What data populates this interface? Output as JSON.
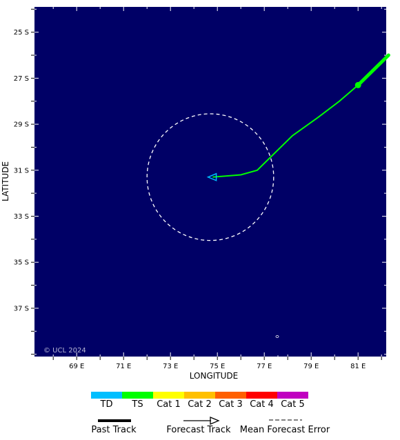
{
  "map": {
    "x_label": "LONGITUDE",
    "y_label": "LATITUDE",
    "copyright": "© UCL 2024",
    "background_color": "#000066",
    "lon_ticks": [
      "69 E",
      "71 E",
      "73 E",
      "75 E",
      "77 E",
      "79 E",
      "81 E"
    ],
    "lat_ticks": [
      "25 S",
      "27 S",
      "29 S",
      "31 S",
      "33 S",
      "35 S",
      "37 S"
    ]
  },
  "chart_data": {
    "type": "map",
    "x_range_lon_e": [
      67.2,
      82.2
    ],
    "y_range_lat_s": [
      23.9,
      39.1
    ],
    "past_track": {
      "category": "TS",
      "points": [
        [
          82.3,
          26.0
        ],
        [
          81.0,
          27.3
        ]
      ]
    },
    "current_position": {
      "lon_e": 81.0,
      "lat_s": 27.3,
      "category": "TS"
    },
    "forecast_track": {
      "category": "TS",
      "points": [
        [
          81.0,
          27.3
        ],
        [
          80.2,
          28.0
        ],
        [
          79.3,
          28.7
        ],
        [
          78.2,
          29.5
        ],
        [
          77.2,
          30.5
        ],
        [
          76.7,
          31.0
        ],
        [
          76.0,
          31.2
        ],
        [
          74.8,
          31.3
        ]
      ],
      "end_arrow_category": "TD",
      "end_point": [
        74.6,
        31.3
      ]
    },
    "mean_forecast_error": {
      "center_lon_e": 74.7,
      "center_lat_s": 31.3,
      "radius_deg": 2.7
    }
  },
  "legend": {
    "categories": [
      {
        "label": "TD",
        "color": "#00bfff"
      },
      {
        "label": "TS",
        "color": "#00ff00"
      },
      {
        "label": "Cat 1",
        "color": "#ffff00"
      },
      {
        "label": "Cat 2",
        "color": "#ffc000"
      },
      {
        "label": "Cat 3",
        "color": "#ff6000"
      },
      {
        "label": "Cat 4",
        "color": "#ff0000"
      },
      {
        "label": "Cat 5",
        "color": "#c000c0"
      }
    ],
    "keys": [
      {
        "label": "Past Track"
      },
      {
        "label": "Forecast Track"
      },
      {
        "label": "Mean Forecast Error"
      }
    ]
  }
}
